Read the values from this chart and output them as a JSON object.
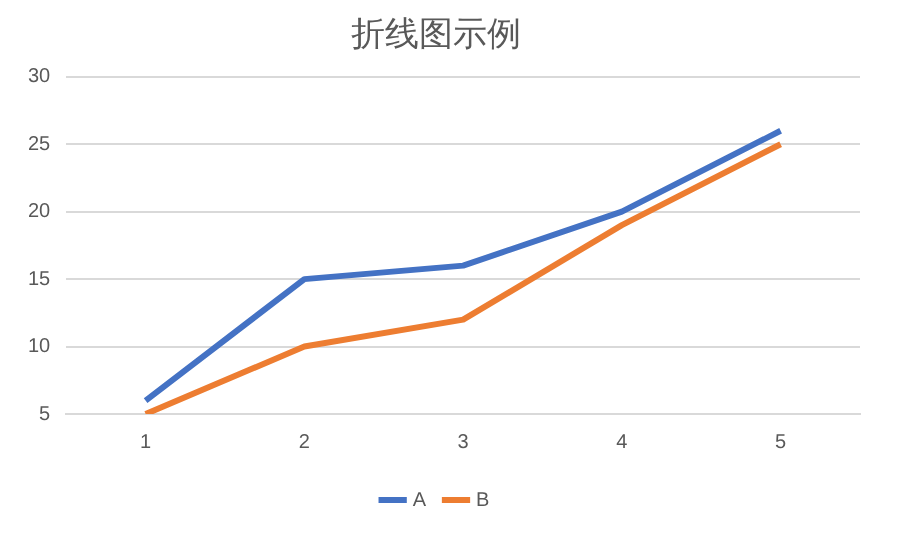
{
  "chart_data": {
    "type": "line",
    "title": "折线图示例",
    "categories": [
      "1",
      "2",
      "3",
      "4",
      "5"
    ],
    "series": [
      {
        "name": "A",
        "color": "#4472c4",
        "values": [
          6,
          15,
          16,
          20,
          26
        ]
      },
      {
        "name": "B",
        "color": "#ed7d31",
        "values": [
          5,
          10,
          12,
          19,
          25
        ]
      }
    ],
    "ylim": [
      5,
      30
    ],
    "yticks": [
      5,
      10,
      15,
      20,
      25,
      30
    ],
    "grid": "y",
    "legend": "bottom",
    "marker": "none",
    "line_style": "solid"
  }
}
